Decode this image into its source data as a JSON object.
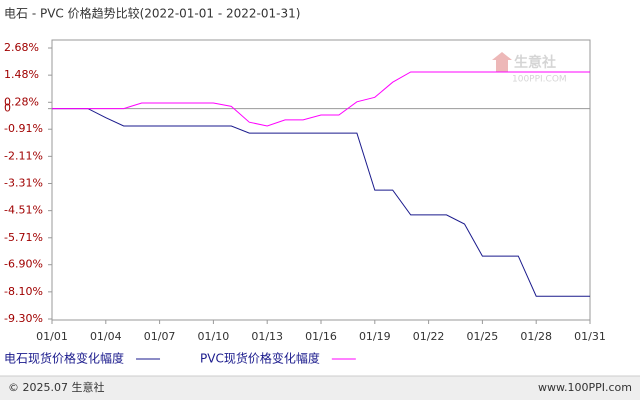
{
  "chart_data": {
    "type": "line",
    "title": "电石 - PVC 价格趋势比较(2022-01-01 - 2022-01-31)",
    "categories": [
      "01/01",
      null,
      null,
      "01/04",
      null,
      null,
      "01/07",
      null,
      null,
      "01/10",
      null,
      null,
      "01/13",
      null,
      null,
      "01/16",
      null,
      null,
      "01/19",
      null,
      null,
      "01/22",
      null,
      null,
      "01/25",
      null,
      null,
      "01/28",
      null,
      null,
      "01/31"
    ],
    "series": [
      {
        "name": "电石现货价格变化幅度",
        "color": "#1a1a8c",
        "values": [
          0,
          0,
          0,
          -0.4,
          -0.77,
          -0.77,
          -0.77,
          -0.77,
          -0.77,
          -0.77,
          -0.77,
          -1.08,
          -1.08,
          -1.08,
          -1.08,
          -1.08,
          -1.08,
          -1.08,
          -3.6,
          -3.6,
          -4.7,
          -4.7,
          -4.7,
          -5.1,
          -6.52,
          -6.52,
          -6.52,
          -8.29,
          -8.29,
          -8.29,
          -8.29
        ]
      },
      {
        "name": "PVC现货价格变化幅度",
        "color": "#ff00ff",
        "values": [
          0,
          0,
          0,
          0,
          0,
          0.25,
          0.25,
          0.25,
          0.25,
          0.25,
          0.1,
          -0.6,
          -0.77,
          -0.5,
          -0.5,
          -0.28,
          -0.28,
          0.3,
          0.5,
          1.17,
          1.62,
          1.62,
          1.62,
          1.62,
          1.62,
          1.62,
          1.62,
          1.62,
          1.62,
          1.62,
          1.62
        ]
      }
    ],
    "ylim": [
      -9.3,
      2.68
    ],
    "yticks": [
      {
        "value": 2.68,
        "label": "2.68%"
      },
      {
        "value": 1.48,
        "label": "1.48%"
      },
      {
        "value": 0.28,
        "label": "0.28%"
      },
      0,
      {
        "value": -0.91,
        "label": "-0.91%"
      },
      {
        "value": -2.11,
        "label": "-2.11%"
      },
      {
        "value": -3.31,
        "label": "-3.31%"
      },
      {
        "value": -4.51,
        "label": "-4.51%"
      },
      {
        "value": -5.71,
        "label": "-5.71%"
      },
      {
        "value": -6.9,
        "label": "-6.90%"
      },
      {
        "value": -8.1,
        "label": "-8.10%"
      },
      {
        "value": -9.3,
        "label": "-9.30%"
      }
    ],
    "watermark": {
      "name": "生意社",
      "url": "100PPI.COM"
    },
    "footer": {
      "copyright": "© 2025.07 生意社",
      "site": "www.100PPI.com"
    }
  }
}
